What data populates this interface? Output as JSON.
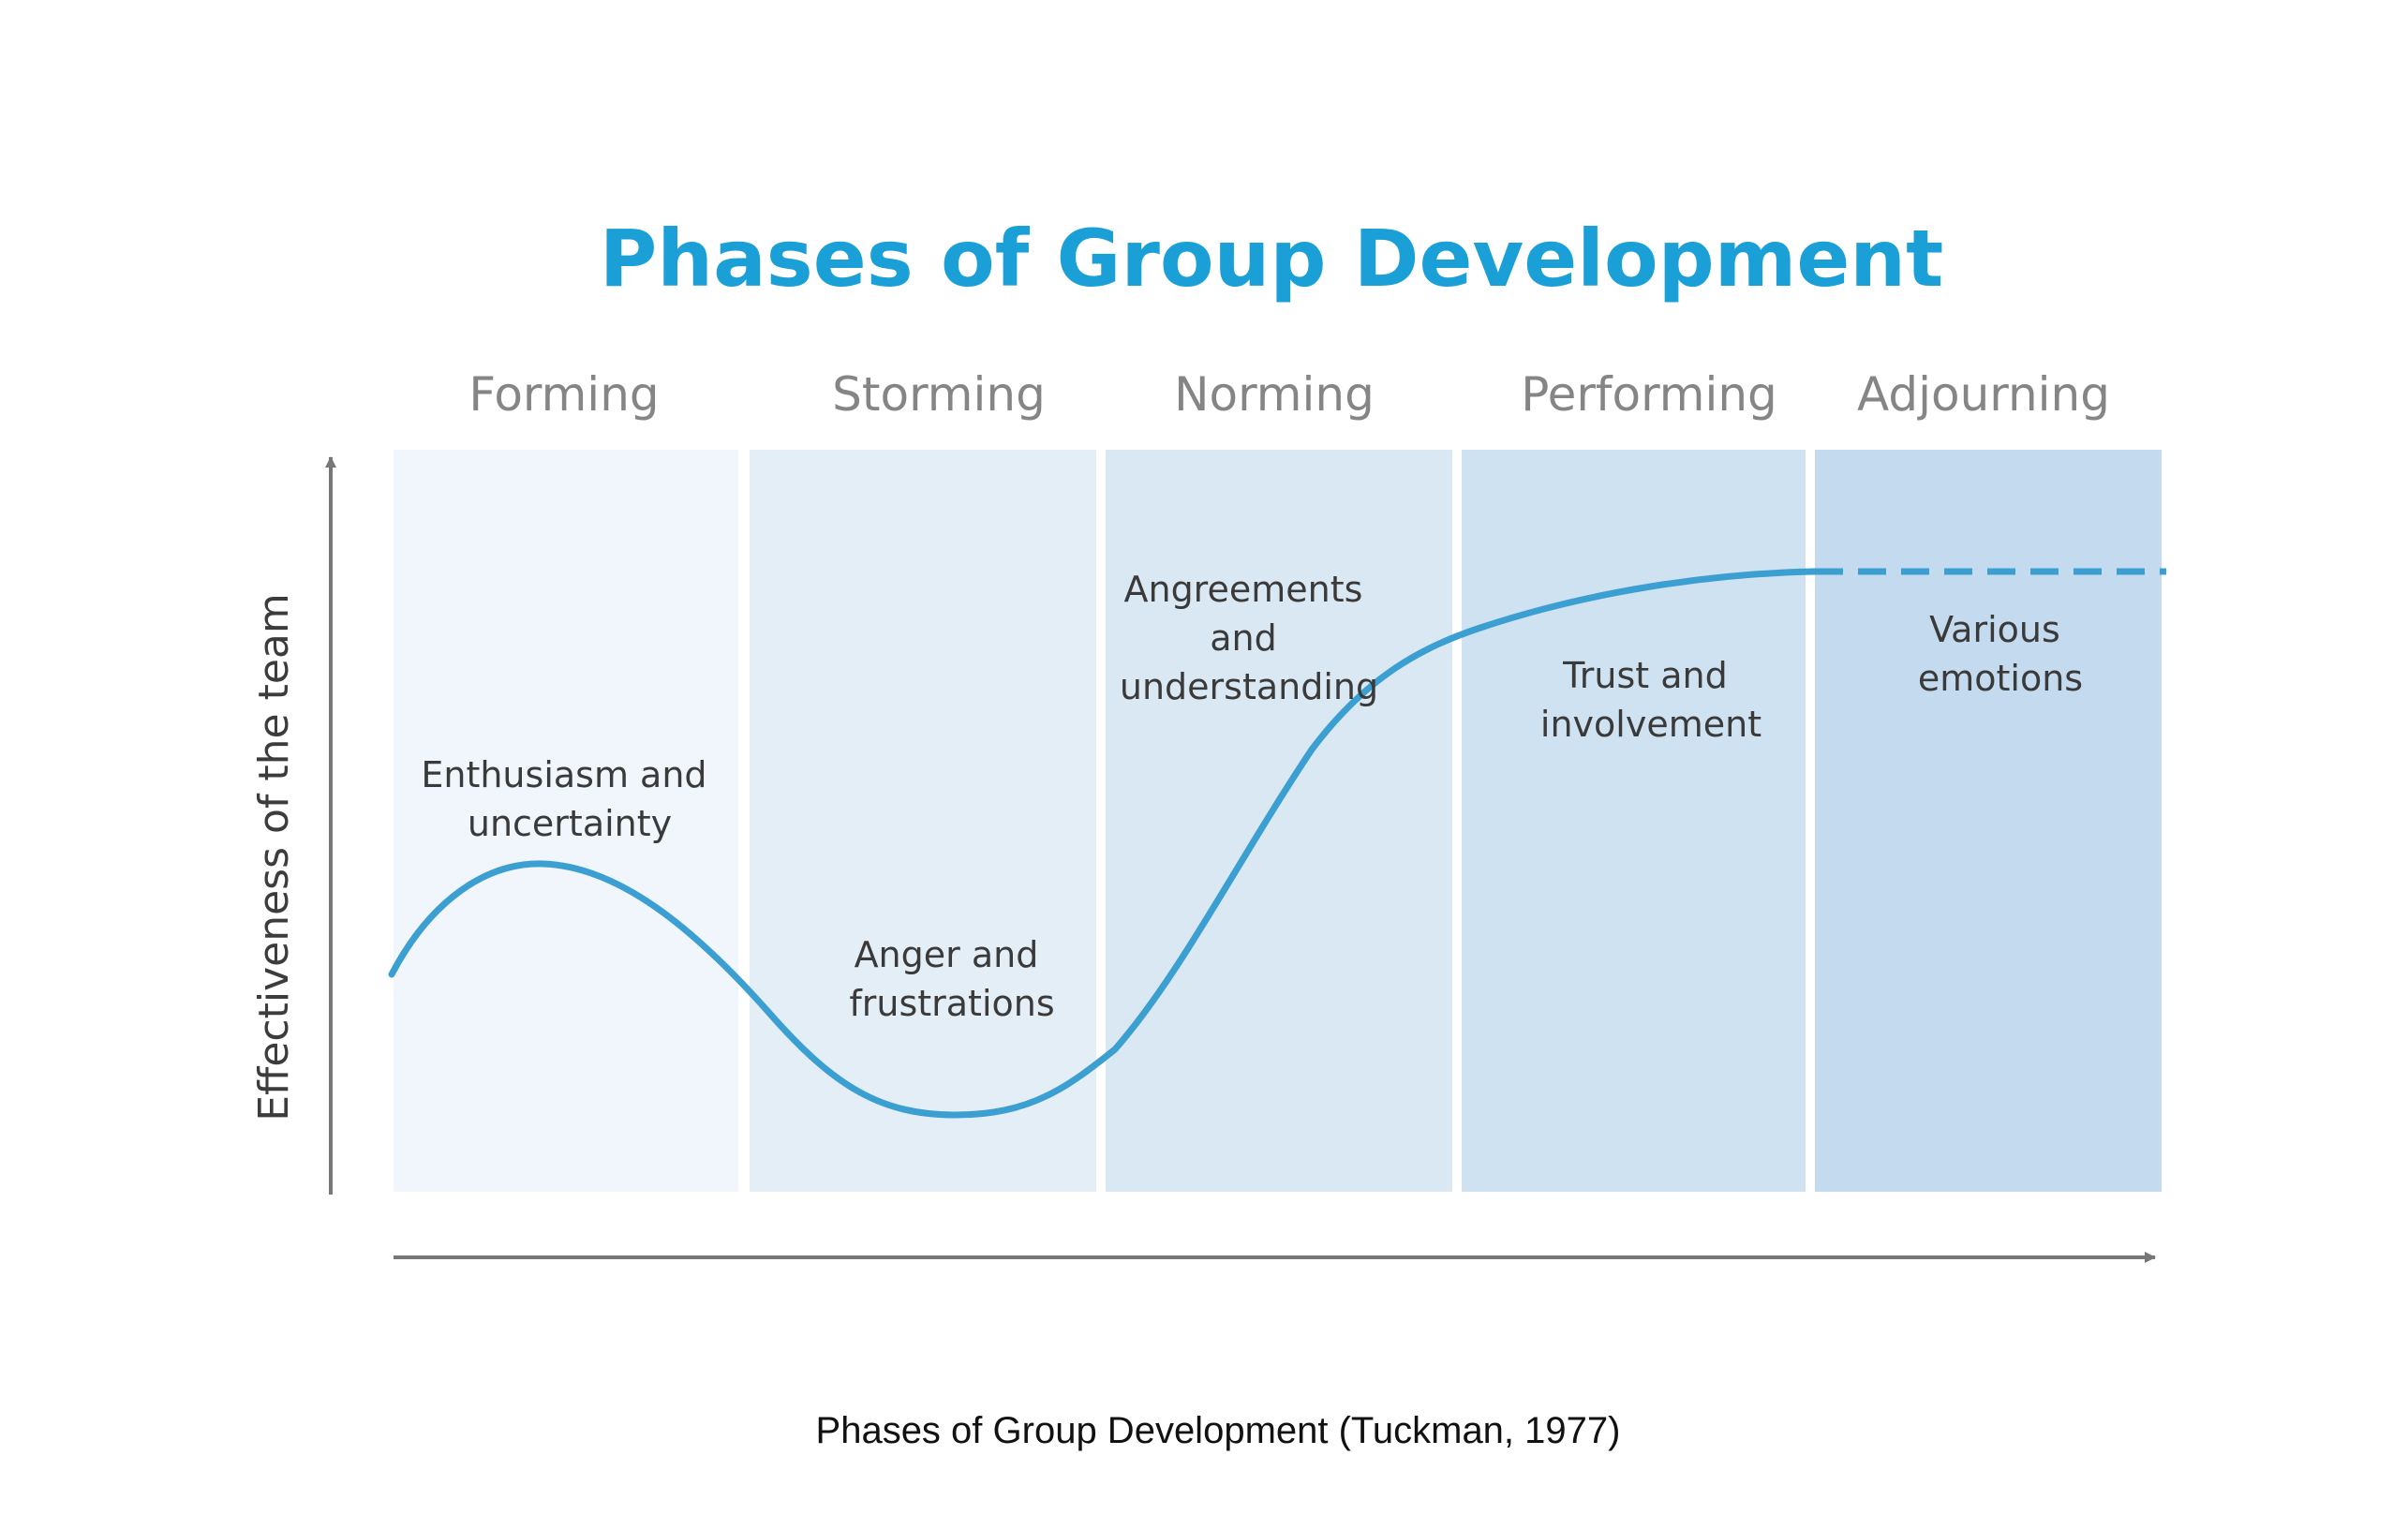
{
  "diagram": {
    "title": "Phases of Group Development",
    "y_axis_label": "Effectiveness of the team",
    "caption": "Phases of Group Development (Tuckman, 1977)",
    "colors": {
      "title": "#1aa0d6",
      "curve": "#3b9fd1",
      "phase_fills": [
        "#f0f6fb",
        "#e4eef7",
        "#dae8f4",
        "#cfe2f1",
        "#c4daee"
      ],
      "axis": "#777777"
    },
    "phases": [
      {
        "name": "Forming",
        "note_lines": [
          "Enthusiasm and",
          "uncertainty"
        ]
      },
      {
        "name": "Storming",
        "note_lines": [
          "Anger and",
          "frustrations"
        ]
      },
      {
        "name": "Norming",
        "note_lines": [
          "Angreements",
          "and",
          "understanding"
        ]
      },
      {
        "name": "Performing",
        "note_lines": [
          "Trust and",
          "involvement"
        ]
      },
      {
        "name": "Adjourning",
        "note_lines": [
          "Various",
          "emotions"
        ]
      }
    ]
  }
}
